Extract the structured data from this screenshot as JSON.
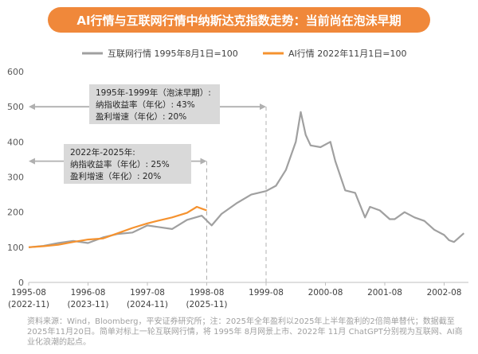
{
  "title": "AI行情与互联网行情中纳斯达克指数走势：当前尚在泡沫早期",
  "chart_data": {
    "type": "line",
    "title": "AI行情与互联网行情中纳斯达克指数走势：当前尚在泡沫早期",
    "series": [
      {
        "name": "互联网行情 1995年8月1日=100",
        "color": "#a0a0a0",
        "x": [
          "1995-08",
          "1995-11",
          "1996-02",
          "1996-05",
          "1996-08",
          "1996-11",
          "1997-02",
          "1997-05",
          "1997-08",
          "1997-10",
          "1998-01",
          "1998-04",
          "1998-07",
          "1998-09",
          "1998-11",
          "1999-02",
          "1999-05",
          "1999-08",
          "1999-10",
          "1999-12",
          "2000-02",
          "2000-03",
          "2000-04",
          "2000-05",
          "2000-07",
          "2000-09",
          "2000-10",
          "2000-12",
          "2001-02",
          "2001-04",
          "2001-05",
          "2001-07",
          "2001-09",
          "2001-10",
          "2001-12",
          "2002-02",
          "2002-04",
          "2002-06",
          "2002-08",
          "2002-09",
          "2002-10",
          "2002-12"
        ],
        "values": [
          100,
          104,
          112,
          118,
          112,
          128,
          138,
          142,
          162,
          158,
          152,
          178,
          190,
          162,
          195,
          225,
          250,
          260,
          275,
          320,
          400,
          485,
          420,
          390,
          385,
          400,
          345,
          262,
          255,
          185,
          215,
          205,
          180,
          180,
          200,
          185,
          175,
          150,
          135,
          120,
          115,
          140
        ]
      },
      {
        "name": "AI行情 2022年11月1日=100",
        "color": "#f5922f",
        "x": [
          "1995-08",
          "1995-11",
          "1996-02",
          "1996-05",
          "1996-08",
          "1996-11",
          "1997-02",
          "1997-05",
          "1997-08",
          "1997-10",
          "1998-01",
          "1998-04",
          "1998-06",
          "1998-07",
          "1998-08"
        ],
        "values": [
          100,
          103,
          107,
          115,
          122,
          125,
          140,
          155,
          168,
          175,
          185,
          198,
          215,
          210,
          205
        ]
      }
    ],
    "ylim": [
      0,
      600
    ],
    "yticks": [
      0,
      100,
      200,
      300,
      400,
      500,
      600
    ],
    "xticks": [
      {
        "label": "1995-08",
        "sub": "(2022-11)",
        "x": "1995-08"
      },
      {
        "label": "1996-08",
        "sub": "(2023-11)",
        "x": "1996-08"
      },
      {
        "label": "1997-08",
        "sub": "(2024-11)",
        "x": "1997-08"
      },
      {
        "label": "1998-08",
        "sub": "(2025-11)",
        "x": "1998-08"
      },
      {
        "label": "1999-08",
        "sub": "",
        "x": "1999-08"
      },
      {
        "label": "2000-08",
        "sub": "",
        "x": "2000-08"
      },
      {
        "label": "2001-08",
        "sub": "",
        "x": "2001-08"
      },
      {
        "label": "2002-08",
        "sub": "",
        "x": "2002-08"
      }
    ],
    "legend_position": "top",
    "annotations": [
      {
        "lines": [
          "1995年-1999年（泡沫早期）:",
          "纳指收益率（年化）: 43%",
          "盈利增速（年化）: 20%"
        ],
        "span": [
          "1995-08",
          "1999-08"
        ],
        "arrow_y": 500
      },
      {
        "lines": [
          "2022年-2025年:",
          "纳指收益率（年化）: 25%",
          "盈利增速（年化）: 20%"
        ],
        "span": [
          "1995-08",
          "1998-08"
        ],
        "arrow_y": 345
      }
    ]
  },
  "footnote": "资料来源：Wind，Bloomberg，平安证券研究所；注：2025年全年盈利以2025年上半年盈利的2倍简单替代；数据截至2025年11月20日。简单对标上一轮互联网行情，将 1995年 8月网景上市、2022年 11月 ChatGPT分别视为互联网、AI商业化浪潮的起点。"
}
